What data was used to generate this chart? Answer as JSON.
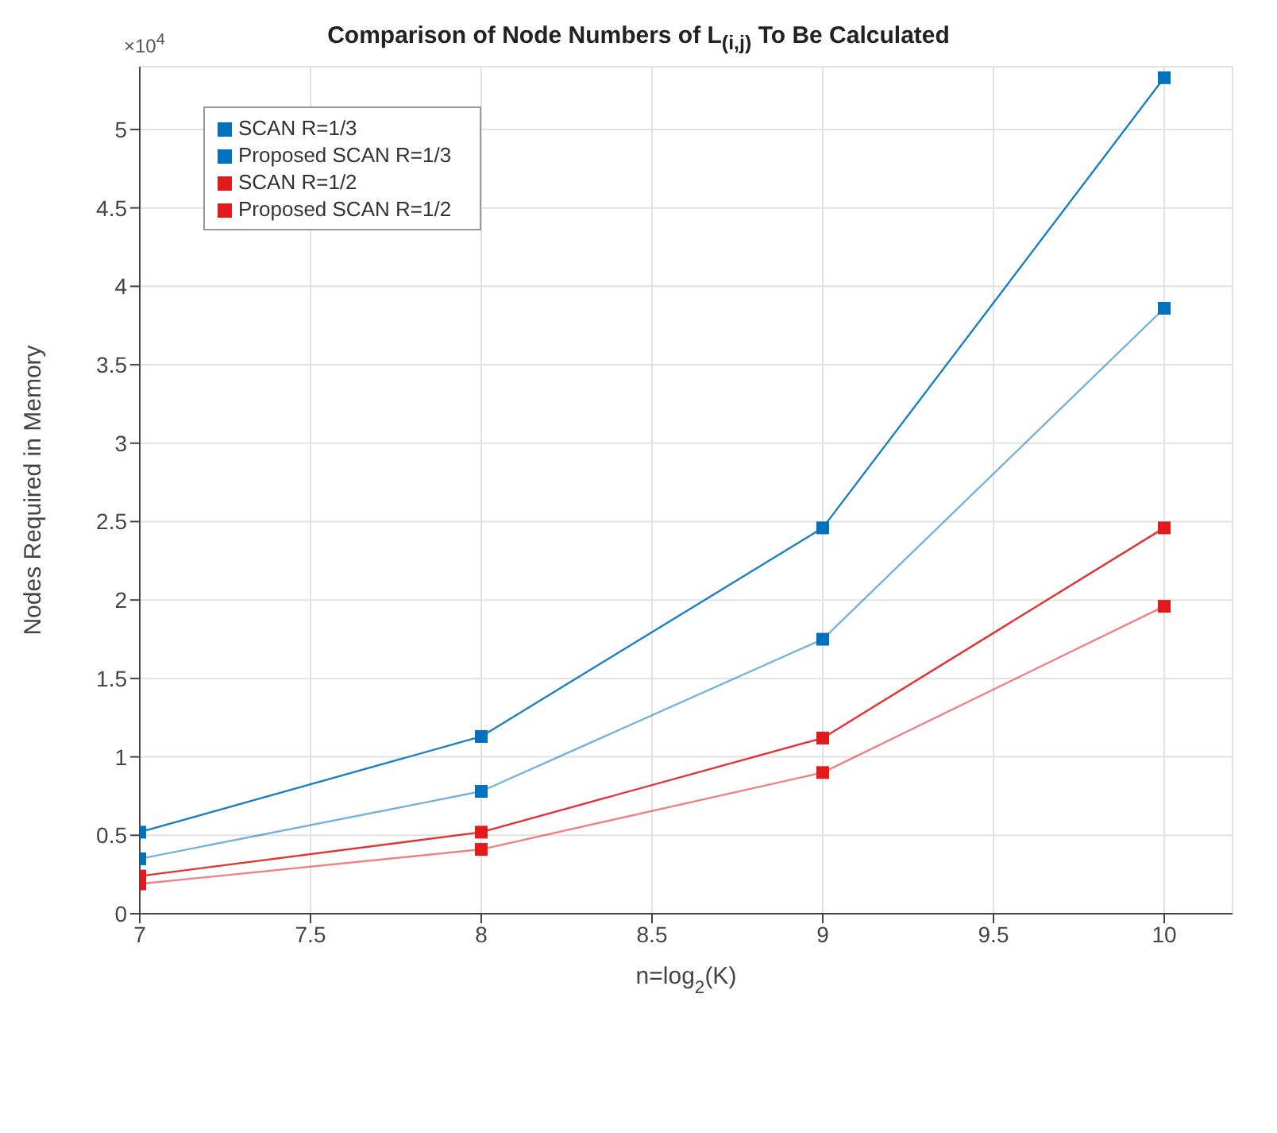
{
  "chart_data": {
    "type": "line",
    "title": "Comparison of Node Numbers of L$_{(i,j)}$ To Be Calculated",
    "xlabel": "n=log$_{2}$(K)",
    "ylabel": "Nodes Required in Memory",
    "annotations": [
      "×10$^{4}$"
    ],
    "x": [
      7,
      8,
      9,
      10
    ],
    "series": [
      {
        "name": "SCAN R=1/3",
        "color": "#0072bd",
        "values": [
          0.52,
          1.13,
          2.46,
          5.33
        ]
      },
      {
        "name": "Proposed SCAN R=1/3",
        "color": "#0072bd",
        "values": [
          0.35,
          0.78,
          1.75,
          3.86
        ]
      },
      {
        "name": "SCAN R=1/2",
        "color": "#e31a1c",
        "values": [
          0.24,
          0.52,
          1.12,
          2.46
        ]
      },
      {
        "name": "Proposed SCAN R=1/2",
        "color": "#e31a1c",
        "values": [
          0.19,
          0.41,
          0.9,
          1.96
        ]
      }
    ],
    "xlim": [
      7,
      10.2
    ],
    "xticks": [
      7,
      7.5,
      8,
      8.5,
      9,
      9.5,
      10
    ],
    "ylim": [
      0,
      5.4
    ],
    "yticks": [
      0,
      0.5,
      1,
      1.5,
      2,
      2.5,
      3,
      3.5,
      4,
      4.5,
      5
    ],
    "grid": true,
    "legend": "top left",
    "marker": "square",
    "line_style": "solid"
  }
}
